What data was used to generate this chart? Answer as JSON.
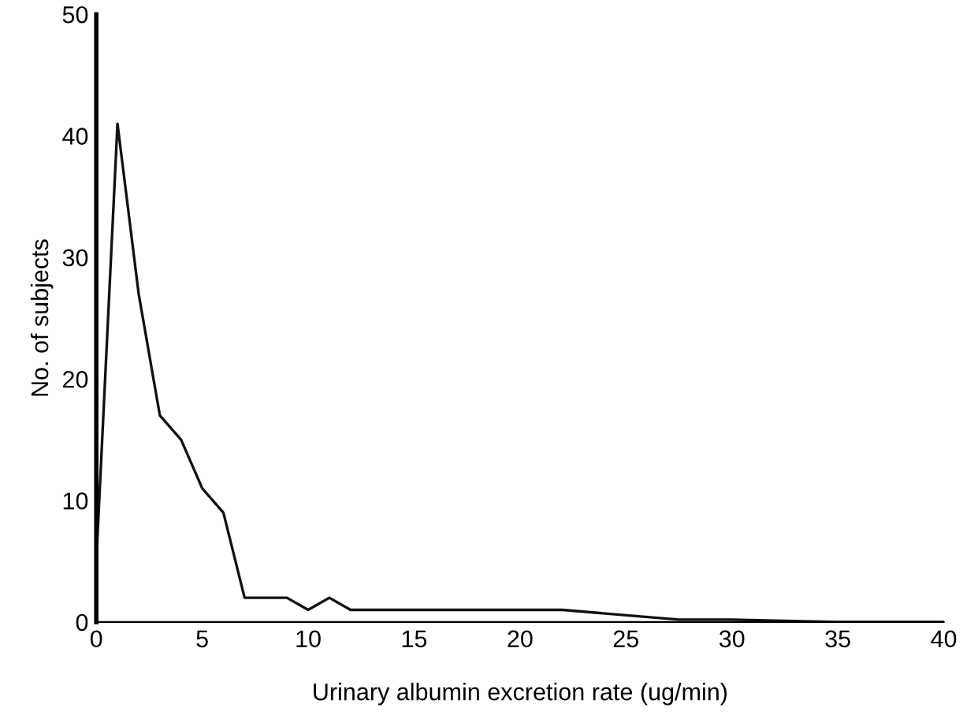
{
  "chart_data": {
    "type": "line",
    "xlabel": "Urinary albumin excretion rate (ug/min)",
    "ylabel": "No. of subjects",
    "x": [
      0,
      1,
      2,
      3,
      4,
      5,
      6,
      7,
      8,
      9,
      10,
      11,
      12,
      15,
      20,
      22,
      27.5,
      30,
      35,
      40
    ],
    "values": [
      5,
      41,
      27,
      17,
      15,
      11,
      9,
      2,
      2,
      2,
      1,
      2,
      1,
      1,
      1,
      1,
      0.2,
      0.2,
      0,
      0
    ],
    "color": "#111111",
    "xlim": [
      0,
      40
    ],
    "ylim": [
      0,
      50
    ],
    "xticks": [
      0,
      5,
      10,
      15,
      20,
      25,
      30,
      35,
      40
    ],
    "yticks": [
      0,
      10,
      20,
      30,
      40,
      50
    ],
    "grid": false,
    "marker": "none",
    "line_style": "solid"
  }
}
